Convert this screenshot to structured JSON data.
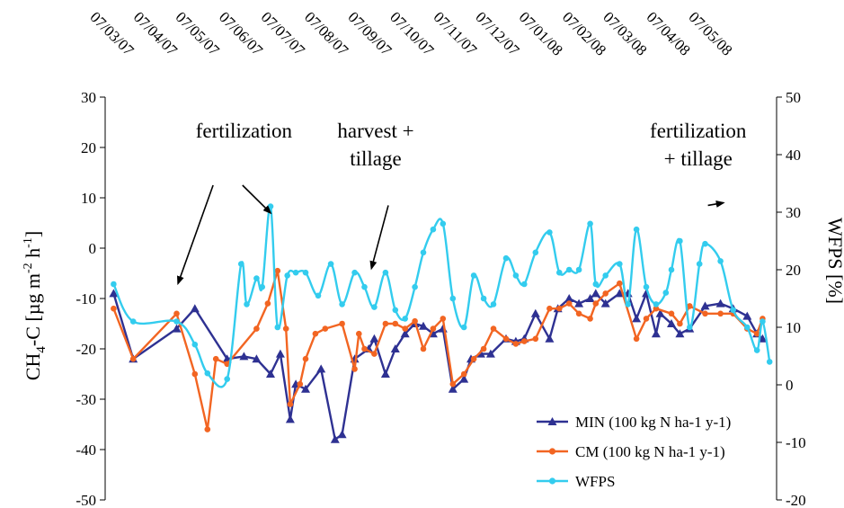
{
  "chart_data": {
    "type": "line",
    "xlabel": "",
    "ylabel": "CH4-C [µg m-2 h-1]",
    "ylabel_parts": {
      "main": "CH",
      "sub": "4",
      "mid": "-C [µg m",
      "sup1": "-2",
      "mid2": " h",
      "sup2": "-1",
      "end": "]"
    },
    "y2label": "WFPS [%]",
    "ylim": [
      -50,
      30
    ],
    "y2lim": [
      -20,
      50
    ],
    "xlim": [
      "2007-02-22",
      "2008-06-15"
    ],
    "y_ticks": [
      "-50",
      "-40",
      "-30",
      "-20",
      "-10",
      "0",
      "10",
      "20",
      "30"
    ],
    "y2_ticks": [
      "-20",
      "-10",
      "0",
      "10",
      "20",
      "30",
      "40",
      "50"
    ],
    "date_labels": [
      {
        "date": "2007-03-07",
        "text": "07/03/07"
      },
      {
        "date": "2007-04-07",
        "text": "07/04/07"
      },
      {
        "date": "2007-05-07",
        "text": "07/05/07"
      },
      {
        "date": "2007-06-07",
        "text": "07/06/07"
      },
      {
        "date": "2007-07-07",
        "text": "07/07/07"
      },
      {
        "date": "2007-08-07",
        "text": "07/08/07"
      },
      {
        "date": "2007-09-07",
        "text": "07/09/07"
      },
      {
        "date": "2007-10-07",
        "text": "07/10/07"
      },
      {
        "date": "2007-11-07",
        "text": "07/11/07"
      },
      {
        "date": "2007-12-07",
        "text": "07/12/07"
      },
      {
        "date": "2008-01-07",
        "text": "07/01/08"
      },
      {
        "date": "2008-02-07",
        "text": "07/02/08"
      },
      {
        "date": "2008-03-07",
        "text": "07/03/08"
      },
      {
        "date": "2008-04-07",
        "text": "07/04/08"
      },
      {
        "date": "2008-05-07",
        "text": "07/05/08"
      }
    ],
    "annotations": [
      {
        "lines": [
          "fertilization"
        ],
        "text_date": "2007-06-01",
        "text_y": 22,
        "arrow_from": [
          "2007-05-10",
          12.5
        ],
        "arrow_to": [
          "2007-04-15",
          -7
        ]
      },
      {
        "lines": [
          "fertilization"
        ],
        "text_date": "2007-06-01",
        "text_y": 22,
        "arrow_from": [
          "2007-05-31",
          12.5
        ],
        "arrow_to": [
          "2007-06-20",
          7
        ]
      },
      {
        "lines": [
          "harvest +",
          "tillage"
        ],
        "text_date": "2007-09-03",
        "text_y": 22,
        "arrow_from": [
          "2007-09-12",
          8.5
        ],
        "arrow_to": [
          "2007-08-31",
          -4
        ]
      },
      {
        "lines": [
          "fertilization",
          "+ tillage"
        ],
        "text_date": "2008-04-20",
        "text_y": 22,
        "arrow_from": [
          "2008-04-27",
          8.5
        ],
        "arrow_to": [
          "2008-05-08",
          9
        ]
      }
    ],
    "legend_position": "bottom-right",
    "series": [
      {
        "name": "MIN (100 kg N ha-1 y-1)",
        "color": "#2e3192",
        "marker": "triangle",
        "axis": "left",
        "x": [
          "2007-02-28",
          "2007-03-14",
          "2007-04-14",
          "2007-04-27",
          "2007-05-20",
          "2007-06-01",
          "2007-06-10",
          "2007-06-20",
          "2007-06-27",
          "2007-07-04",
          "2007-07-08",
          "2007-07-15",
          "2007-07-26",
          "2007-08-05",
          "2007-08-10",
          "2007-08-19",
          "2007-08-29",
          "2007-09-02",
          "2007-09-10",
          "2007-09-17",
          "2007-09-24",
          "2007-10-01",
          "2007-10-07",
          "2007-10-14",
          "2007-10-21",
          "2007-10-28",
          "2007-11-05",
          "2007-11-10",
          "2007-11-17",
          "2007-11-24",
          "2007-12-05",
          "2007-12-12",
          "2007-12-18",
          "2007-12-26",
          "2008-01-05",
          "2008-01-11",
          "2008-01-19",
          "2008-01-26",
          "2008-02-03",
          "2008-02-07",
          "2008-02-14",
          "2008-02-24",
          "2008-03-01",
          "2008-03-07",
          "2008-03-14",
          "2008-03-21",
          "2008-03-24",
          "2008-04-01",
          "2008-04-07",
          "2008-04-14",
          "2008-04-25",
          "2008-05-06",
          "2008-05-15",
          "2008-05-25",
          "2008-06-01",
          "2008-06-05"
        ],
        "y": [
          -9,
          -22,
          -16,
          -12,
          -22,
          -21.5,
          -22,
          -25,
          -21,
          -34,
          -27,
          -28,
          -24,
          -38,
          -37,
          -22,
          -20,
          -18,
          -25,
          -20,
          -17,
          -15,
          -15.5,
          -17,
          -16,
          -28,
          -26,
          -22,
          -21,
          -21,
          -18,
          -18.5,
          -18,
          -13,
          -18,
          -12,
          -10,
          -11,
          -10,
          -9,
          -11,
          -9,
          -9,
          -14,
          -9,
          -17,
          -13,
          -15,
          -17,
          -16,
          -11.5,
          -11,
          -12,
          -13.5,
          -17,
          -18
        ]
      },
      {
        "name": "CM (100 kg N ha-1 y-1)",
        "color": "#f26522",
        "marker": "circle",
        "axis": "left",
        "x": [
          "2007-02-28",
          "2007-03-14",
          "2007-04-14",
          "2007-04-27",
          "2007-05-06",
          "2007-05-12",
          "2007-05-20",
          "2007-06-10",
          "2007-06-18",
          "2007-06-25",
          "2007-07-01",
          "2007-07-04",
          "2007-07-11",
          "2007-07-15",
          "2007-07-22",
          "2007-07-29",
          "2007-08-10",
          "2007-08-19",
          "2007-08-22",
          "2007-08-26",
          "2007-09-02",
          "2007-09-10",
          "2007-09-17",
          "2007-09-24",
          "2007-10-01",
          "2007-10-07",
          "2007-10-14",
          "2007-10-21",
          "2007-10-28",
          "2007-11-05",
          "2007-11-12",
          "2007-11-19",
          "2007-11-26",
          "2007-12-05",
          "2007-12-12",
          "2007-12-18",
          "2007-12-26",
          "2008-01-05",
          "2008-01-12",
          "2008-01-19",
          "2008-01-26",
          "2008-02-03",
          "2008-02-07",
          "2008-02-14",
          "2008-02-24",
          "2008-03-07",
          "2008-03-14",
          "2008-03-21",
          "2008-04-01",
          "2008-04-07",
          "2008-04-14",
          "2008-04-25",
          "2008-05-06",
          "2008-05-15",
          "2008-05-25",
          "2008-06-01",
          "2008-06-05"
        ],
        "y": [
          -12,
          -22,
          -13,
          -25,
          -36,
          -22,
          -23,
          -16,
          -11,
          -4.5,
          -16,
          -31,
          -27,
          -22,
          -17,
          -16,
          -15,
          -24,
          -17,
          -20,
          -21,
          -15,
          -15,
          -16,
          -14.5,
          -20,
          -16,
          -14,
          -27,
          -25,
          -22,
          -20,
          -16,
          -18,
          -19,
          -18.5,
          -18,
          -12,
          -12,
          -11,
          -13,
          -14,
          -11,
          -9,
          -7,
          -18,
          -14,
          -12,
          -13,
          -15,
          -11.5,
          -13,
          -13,
          -13,
          -16,
          -17,
          -14
        ]
      },
      {
        "name": "WFPS",
        "color": "#33ccee",
        "marker": "circle",
        "axis": "right",
        "x": [
          "2007-02-28",
          "2007-03-14",
          "2007-04-14",
          "2007-04-27",
          "2007-05-06",
          "2007-05-20",
          "2007-05-30",
          "2007-06-03",
          "2007-06-10",
          "2007-06-14",
          "2007-06-20",
          "2007-06-25",
          "2007-07-02",
          "2007-07-08",
          "2007-07-15",
          "2007-07-24",
          "2007-08-02",
          "2007-08-10",
          "2007-08-19",
          "2007-08-26",
          "2007-09-02",
          "2007-09-10",
          "2007-09-17",
          "2007-09-24",
          "2007-10-01",
          "2007-10-07",
          "2007-10-14",
          "2007-10-21",
          "2007-10-28",
          "2007-11-05",
          "2007-11-12",
          "2007-11-19",
          "2007-11-26",
          "2007-12-05",
          "2007-12-12",
          "2007-12-18",
          "2007-12-26",
          "2008-01-05",
          "2008-01-12",
          "2008-01-19",
          "2008-01-26",
          "2008-02-03",
          "2008-02-07",
          "2008-02-14",
          "2008-02-24",
          "2008-03-01",
          "2008-03-07",
          "2008-03-14",
          "2008-03-21",
          "2008-03-28",
          "2008-04-01",
          "2008-04-07",
          "2008-04-14",
          "2008-04-21",
          "2008-04-25",
          "2008-05-06",
          "2008-05-15",
          "2008-05-25",
          "2008-06-01",
          "2008-06-05",
          "2008-06-10"
        ],
        "y": [
          17.5,
          11,
          11,
          7,
          2,
          1,
          21,
          14,
          18.5,
          17,
          31,
          10,
          19,
          19.5,
          19.5,
          15.5,
          21,
          14,
          19.5,
          17,
          13.5,
          19.5,
          13,
          11.5,
          17,
          23,
          27,
          28,
          15,
          10,
          19,
          15,
          14,
          22,
          19,
          17.5,
          23,
          26.5,
          19.5,
          20,
          20,
          28,
          17.5,
          19,
          21,
          14,
          27,
          17,
          14,
          16,
          20,
          25,
          10,
          21,
          24.5,
          21.5,
          13,
          10,
          6,
          11,
          4
        ]
      }
    ]
  }
}
